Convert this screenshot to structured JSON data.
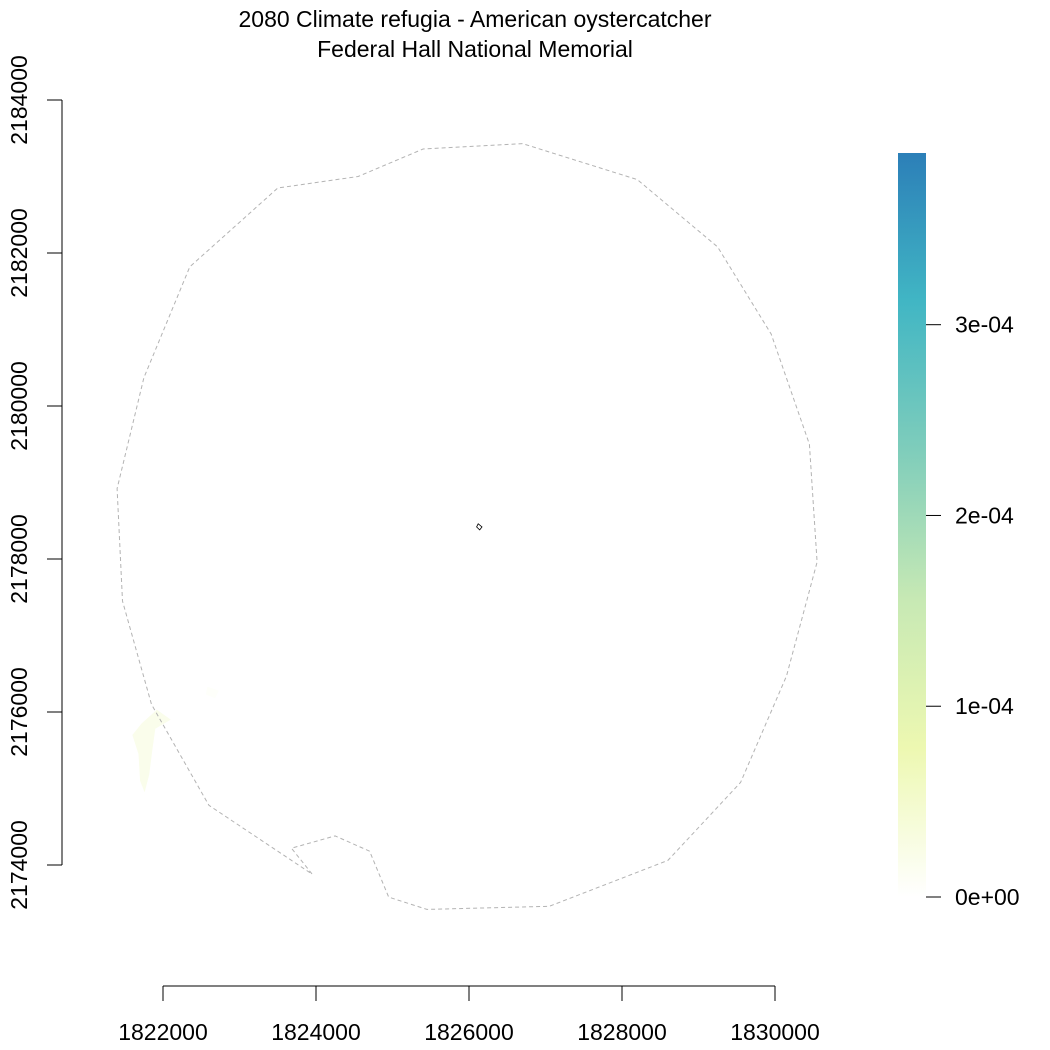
{
  "title": {
    "line1": "2080 Climate refugia - American oystercatcher",
    "line2": "Federal Hall National Memorial"
  },
  "chart_data": {
    "type": "raster-map",
    "x_ticks": [
      "1822000",
      "1824000",
      "1826000",
      "1828000",
      "1830000"
    ],
    "y_ticks": [
      "2174000",
      "2176000",
      "2178000",
      "2180000",
      "2182000",
      "2184000"
    ],
    "xlim": [
      1822000,
      1830000
    ],
    "ylim": [
      2174000,
      2184000
    ],
    "buffer_boundary": {
      "style": "dashed",
      "color": "#b3b3b3",
      "points": [
        [
          1826700,
          2183430
        ],
        [
          1825400,
          2183360
        ],
        [
          1824550,
          2183000
        ],
        [
          1823500,
          2182850
        ],
        [
          1822350,
          2181820
        ],
        [
          1821750,
          2180370
        ],
        [
          1821400,
          2178920
        ],
        [
          1821470,
          2177450
        ],
        [
          1821850,
          2176100
        ],
        [
          1822600,
          2174780
        ],
        [
          1823950,
          2173880
        ],
        [
          1823680,
          2174220
        ],
        [
          1824250,
          2174380
        ],
        [
          1824700,
          2174180
        ],
        [
          1824950,
          2173580
        ],
        [
          1825450,
          2173420
        ],
        [
          1827050,
          2173460
        ],
        [
          1828600,
          2174060
        ],
        [
          1829550,
          2175080
        ],
        [
          1830150,
          2176470
        ],
        [
          1830550,
          2177960
        ],
        [
          1830450,
          2179500
        ],
        [
          1829950,
          2180940
        ],
        [
          1829250,
          2182080
        ],
        [
          1828200,
          2182960
        ]
      ]
    },
    "park_boundary": {
      "color": "#000000",
      "points": [
        [
          1826120,
          2178460
        ],
        [
          1826170,
          2178420
        ],
        [
          1826140,
          2178380
        ],
        [
          1826100,
          2178420
        ]
      ]
    },
    "refugia_patches": [
      {
        "value": 2e-05,
        "points": [
          [
            1821920,
            2176030
          ],
          [
            1822100,
            2175900
          ],
          [
            1821900,
            2175780
          ],
          [
            1821860,
            2175500
          ],
          [
            1821820,
            2175180
          ],
          [
            1821760,
            2174950
          ],
          [
            1821700,
            2175100
          ],
          [
            1821680,
            2175450
          ],
          [
            1821600,
            2175700
          ],
          [
            1821720,
            2175850
          ]
        ]
      },
      {
        "value": 5e-06,
        "points": [
          [
            1822580,
            2176330
          ],
          [
            1822730,
            2176280
          ],
          [
            1822680,
            2176180
          ],
          [
            1822560,
            2176230
          ]
        ]
      }
    ],
    "legend": {
      "position": "right",
      "min": 0,
      "max": 0.00039,
      "tick_values": [
        0,
        0.0001,
        0.0002,
        0.0003
      ],
      "tick_labels": [
        "0e+00",
        "1e-04",
        "2e-04",
        "3e-04"
      ],
      "colors": [
        "#ffffff",
        "#edf8b1",
        "#c7e9b4",
        "#7fcdbb",
        "#41b6c4",
        "#2c7fb8"
      ]
    }
  }
}
